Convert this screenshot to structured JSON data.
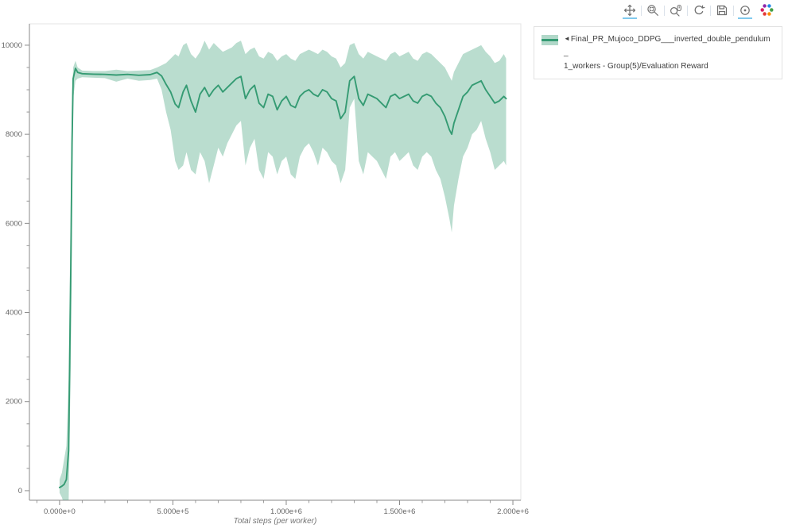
{
  "toolbar": {
    "tools": [
      {
        "name": "Pan",
        "active": true
      },
      {
        "name": "Box Zoom",
        "active": false
      },
      {
        "name": "Wheel Zoom",
        "active": false
      },
      {
        "name": "Reset",
        "active": false
      },
      {
        "name": "Save",
        "active": false
      },
      {
        "name": "Hover",
        "active": true
      }
    ],
    "logo_name": "Bokeh"
  },
  "legend": {
    "marker": "◄",
    "label_line1": "Final_PR_Mujoco_DDPG___inverted_double_pendulum_",
    "label_line2": "1_workers - Group(5)/Evaluation Reward"
  },
  "chart_data": {
    "type": "line",
    "title": "",
    "xlabel": "Total steps (per worker)",
    "ylabel": "",
    "grid": false,
    "legend_position": "top-right-outside",
    "xlim": [
      -133000,
      2035000
    ],
    "ylim": [
      -215,
      10480
    ],
    "x_ticks": {
      "values": [
        0,
        500000,
        1000000,
        1500000,
        2000000
      ],
      "labels": [
        "0.000e+0",
        "5.000e+5",
        "1.000e+6",
        "1.500e+6",
        "2.000e+6"
      ]
    },
    "y_ticks": {
      "values": [
        0,
        2000,
        4000,
        6000,
        8000,
        10000
      ],
      "labels": [
        "0",
        "2000",
        "4000",
        "6000",
        "8000",
        "10000"
      ]
    },
    "x_minor_step": 100000,
    "y_minor_step": 500,
    "series": [
      {
        "name": "Final_PR_Mujoco_DDPG___inverted_double_pendulum_1_workers - Group(5)/Evaluation Reward",
        "color": "#359b73",
        "band_opacity": 0.34,
        "points_format": [
          "x",
          "band_lower",
          "mean",
          "band_upper"
        ],
        "points": [
          [
            0,
            -50,
            70,
            250
          ],
          [
            10000,
            -150,
            100,
            400
          ],
          [
            20000,
            -300,
            140,
            700
          ],
          [
            30000,
            -400,
            250,
            1000
          ],
          [
            40000,
            -300,
            900,
            2500
          ],
          [
            50000,
            3000,
            5200,
            7000
          ],
          [
            55000,
            6500,
            7800,
            8900
          ],
          [
            60000,
            8800,
            9250,
            9500
          ],
          [
            70000,
            9200,
            9480,
            9650
          ],
          [
            80000,
            9250,
            9390,
            9500
          ],
          [
            100000,
            9280,
            9360,
            9430
          ],
          [
            150000,
            9270,
            9350,
            9420
          ],
          [
            200000,
            9260,
            9345,
            9420
          ],
          [
            250000,
            9180,
            9330,
            9450
          ],
          [
            300000,
            9250,
            9345,
            9420
          ],
          [
            350000,
            9200,
            9325,
            9430
          ],
          [
            400000,
            9220,
            9340,
            9440
          ],
          [
            430000,
            9250,
            9390,
            9500
          ],
          [
            450000,
            9000,
            9310,
            9550
          ],
          [
            470000,
            8500,
            9120,
            9600
          ],
          [
            490000,
            8100,
            8950,
            9700
          ],
          [
            510000,
            7400,
            8680,
            9800
          ],
          [
            525000,
            7200,
            8600,
            9750
          ],
          [
            545000,
            7300,
            8950,
            10000
          ],
          [
            560000,
            7600,
            9100,
            10050
          ],
          [
            580000,
            7200,
            8750,
            9800
          ],
          [
            600000,
            7100,
            8500,
            9700
          ],
          [
            620000,
            7600,
            8900,
            9850
          ],
          [
            640000,
            7400,
            9050,
            10100
          ],
          [
            660000,
            6900,
            8850,
            9900
          ],
          [
            680000,
            7300,
            9000,
            10050
          ],
          [
            700000,
            7700,
            9100,
            9950
          ],
          [
            720000,
            7500,
            8950,
            9850
          ],
          [
            740000,
            7800,
            9050,
            9900
          ],
          [
            760000,
            8000,
            9150,
            9950
          ],
          [
            780000,
            8200,
            9250,
            10050
          ],
          [
            800000,
            8300,
            9300,
            10100
          ],
          [
            820000,
            7300,
            8800,
            9800
          ],
          [
            840000,
            7700,
            9000,
            9900
          ],
          [
            860000,
            7900,
            9100,
            9950
          ],
          [
            880000,
            7200,
            8700,
            9750
          ],
          [
            900000,
            7000,
            8600,
            9700
          ],
          [
            920000,
            7600,
            8900,
            9850
          ],
          [
            940000,
            7500,
            8850,
            9800
          ],
          [
            960000,
            7100,
            8550,
            9650
          ],
          [
            980000,
            7400,
            8750,
            9750
          ],
          [
            1000000,
            7500,
            8850,
            9800
          ],
          [
            1020000,
            7100,
            8650,
            9700
          ],
          [
            1040000,
            7000,
            8600,
            9650
          ],
          [
            1060000,
            7500,
            8850,
            9800
          ],
          [
            1080000,
            7700,
            8950,
            9850
          ],
          [
            1100000,
            7800,
            9000,
            9900
          ],
          [
            1120000,
            7600,
            8900,
            9850
          ],
          [
            1140000,
            7300,
            8850,
            9800
          ],
          [
            1160000,
            7700,
            9000,
            9900
          ],
          [
            1180000,
            7600,
            8950,
            9850
          ],
          [
            1200000,
            7400,
            8800,
            9750
          ],
          [
            1220000,
            7300,
            8750,
            9700
          ],
          [
            1240000,
            6900,
            8350,
            9500
          ],
          [
            1260000,
            7200,
            8500,
            9600
          ],
          [
            1280000,
            8600,
            9200,
            10000
          ],
          [
            1300000,
            8800,
            9300,
            10050
          ],
          [
            1320000,
            7400,
            8800,
            9800
          ],
          [
            1340000,
            7100,
            8650,
            9700
          ],
          [
            1360000,
            7600,
            8900,
            9850
          ],
          [
            1380000,
            7500,
            8850,
            9800
          ],
          [
            1400000,
            7400,
            8800,
            9750
          ],
          [
            1420000,
            7200,
            8700,
            9700
          ],
          [
            1440000,
            7000,
            8600,
            9650
          ],
          [
            1460000,
            7500,
            8850,
            9800
          ],
          [
            1480000,
            7600,
            8900,
            9850
          ],
          [
            1500000,
            7400,
            8800,
            9750
          ],
          [
            1520000,
            7500,
            8850,
            9800
          ],
          [
            1540000,
            7600,
            8900,
            9850
          ],
          [
            1560000,
            7300,
            8750,
            9700
          ],
          [
            1580000,
            7200,
            8700,
            9650
          ],
          [
            1600000,
            7500,
            8850,
            9800
          ],
          [
            1620000,
            7600,
            8900,
            9850
          ],
          [
            1640000,
            7500,
            8850,
            9800
          ],
          [
            1660000,
            7200,
            8700,
            9700
          ],
          [
            1680000,
            7000,
            8600,
            9600
          ],
          [
            1700000,
            6600,
            8400,
            9500
          ],
          [
            1720000,
            6100,
            8100,
            9300
          ],
          [
            1730000,
            5800,
            8000,
            9200
          ],
          [
            1740000,
            6400,
            8250,
            9400
          ],
          [
            1760000,
            7000,
            8550,
            9600
          ],
          [
            1780000,
            7500,
            8850,
            9800
          ],
          [
            1800000,
            7700,
            8950,
            9850
          ],
          [
            1820000,
            8000,
            9100,
            9900
          ],
          [
            1840000,
            8100,
            9150,
            9950
          ],
          [
            1860000,
            8300,
            9200,
            10000
          ],
          [
            1880000,
            7900,
            9000,
            9850
          ],
          [
            1900000,
            7600,
            8850,
            9750
          ],
          [
            1920000,
            7200,
            8700,
            9600
          ],
          [
            1940000,
            7300,
            8750,
            9650
          ],
          [
            1960000,
            7400,
            8850,
            9800
          ],
          [
            1970000,
            7300,
            8800,
            9700
          ]
        ]
      }
    ]
  }
}
